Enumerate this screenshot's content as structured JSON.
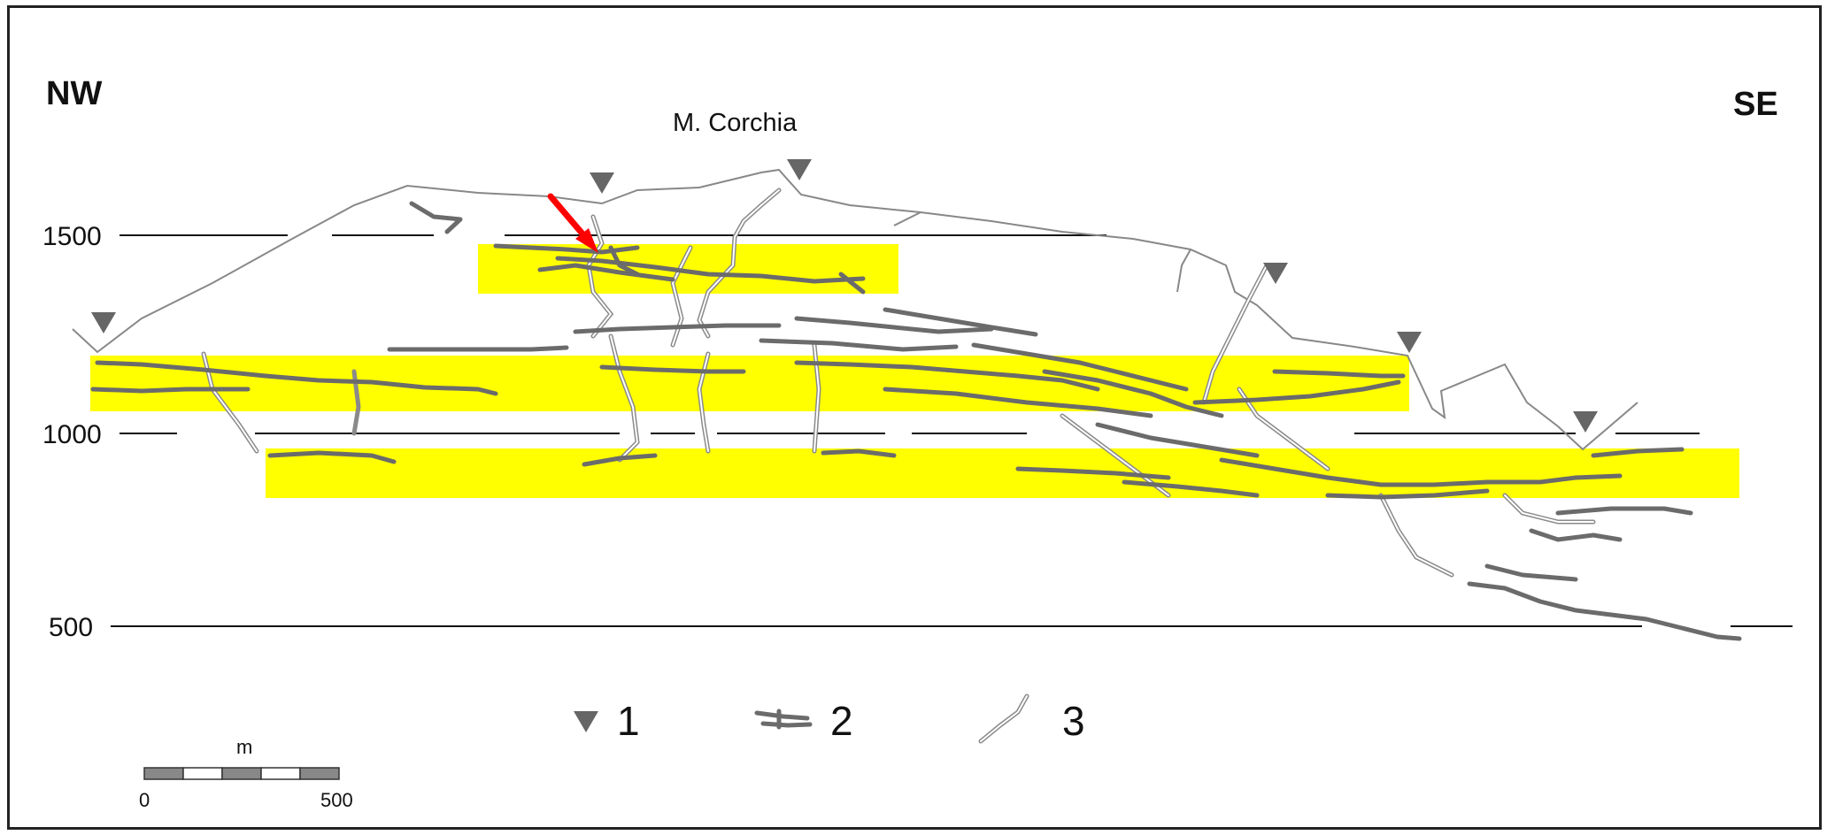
{
  "labels": {
    "left_direction": "NW",
    "right_direction": "SE",
    "peak_name": "M. Corchia"
  },
  "elevation_labels": [
    "1500",
    "1000",
    "500"
  ],
  "legend": [
    {
      "number": "1",
      "icon": "entrance-triangle-icon"
    },
    {
      "number": "2",
      "icon": "horizontal-cave-passage-icon"
    },
    {
      "number": "3",
      "icon": "vertical-shaft-passage-icon"
    }
  ],
  "scale_bar": {
    "unit": "m",
    "start": "0",
    "end": "500"
  },
  "colors": {
    "level_band": "#ffff00",
    "passage": "#6b6b6b",
    "shaft": "#8a8a8a",
    "surface": "#888888",
    "entrance": "#666666",
    "arrow": "#ff0000"
  }
}
